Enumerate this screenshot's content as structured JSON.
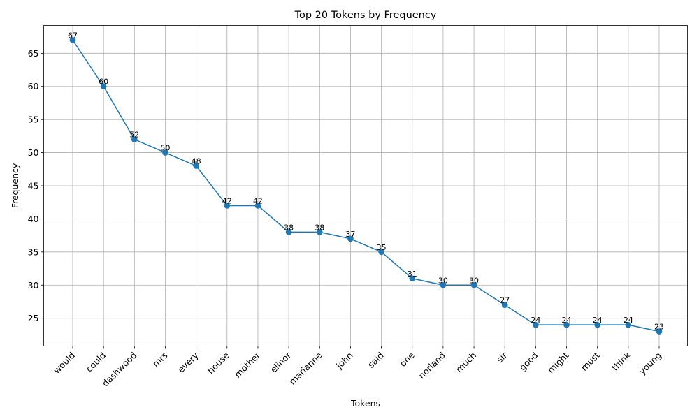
{
  "chart_data": {
    "type": "line",
    "title": "Top 20 Tokens by Frequency",
    "xlabel": "Tokens",
    "ylabel": "Frequency",
    "categories": [
      "would",
      "could",
      "dashwood",
      "mrs",
      "every",
      "house",
      "mother",
      "elinor",
      "marianne",
      "john",
      "said",
      "one",
      "norland",
      "much",
      "sir",
      "good",
      "might",
      "must",
      "think",
      "young"
    ],
    "series": [
      {
        "values": [
          67,
          60,
          52,
          50,
          48,
          42,
          42,
          38,
          38,
          37,
          35,
          31,
          30,
          30,
          27,
          24,
          24,
          24,
          24,
          23
        ]
      }
    ],
    "ylim": [
      20.8,
      69.2
    ],
    "yticks": [
      25,
      30,
      35,
      40,
      45,
      50,
      55,
      60,
      65
    ],
    "grid": true,
    "marker": "circle",
    "data_labels": true,
    "x_tick_rotation": 45,
    "colors": {
      "line": "#1f77b4",
      "grid": "#b0b0b0"
    }
  }
}
